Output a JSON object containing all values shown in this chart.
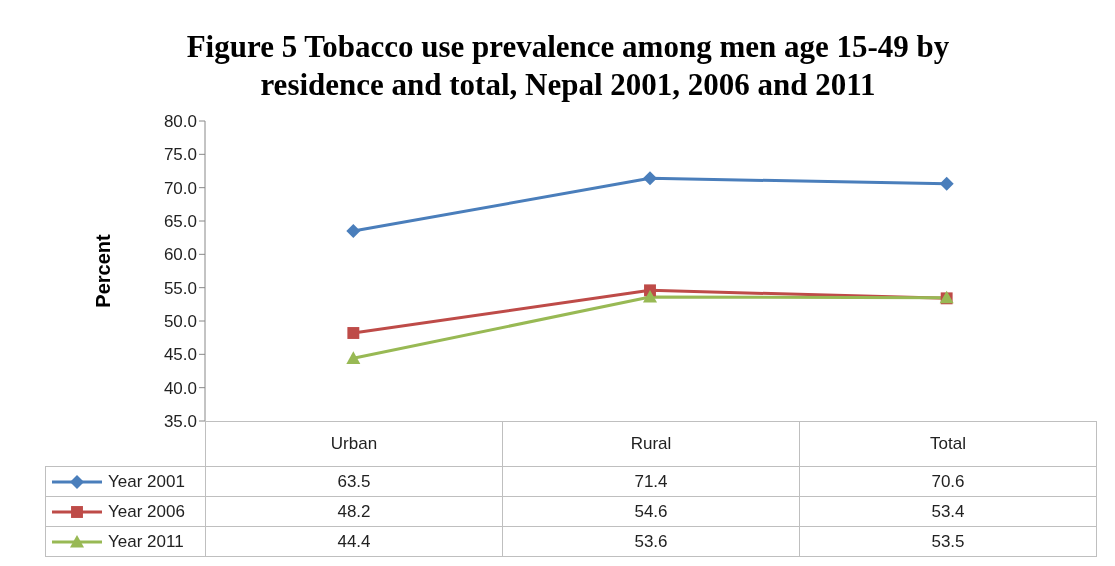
{
  "chart_data": {
    "type": "line",
    "title": "Figure 5 Tobacco use prevalence among men age 15-49 by residence and total, Nepal 2001, 2006 and 2011",
    "ylabel": "Percent",
    "categories": [
      "Urban",
      "Rural",
      "Total"
    ],
    "series": [
      {
        "name": "Year 2001",
        "color": "#4a7ebb",
        "marker": "diamond",
        "values": [
          63.5,
          71.4,
          70.6
        ]
      },
      {
        "name": "Year 2006",
        "color": "#be4b48",
        "marker": "square",
        "values": [
          48.2,
          54.6,
          53.4
        ]
      },
      {
        "name": "Year 2011",
        "color": "#98b954",
        "marker": "triangle",
        "values": [
          44.4,
          53.6,
          53.5
        ]
      }
    ],
    "ylim": [
      35,
      80
    ],
    "yticks": [
      {
        "value": 35,
        "label": "35.0"
      },
      {
        "value": 40,
        "label": "40.0"
      },
      {
        "value": 45,
        "label": "45.0"
      },
      {
        "value": 50,
        "label": "50.0"
      },
      {
        "value": 55,
        "label": "55.0"
      },
      {
        "value": 60,
        "label": "60.0"
      },
      {
        "value": 65,
        "label": "65.0"
      },
      {
        "value": 70,
        "label": "70.0"
      },
      {
        "value": 75,
        "label": "75.0"
      },
      {
        "value": 80,
        "label": "80.0"
      }
    ],
    "data_labels": true,
    "legend": "bottom",
    "line_style": "solid"
  }
}
